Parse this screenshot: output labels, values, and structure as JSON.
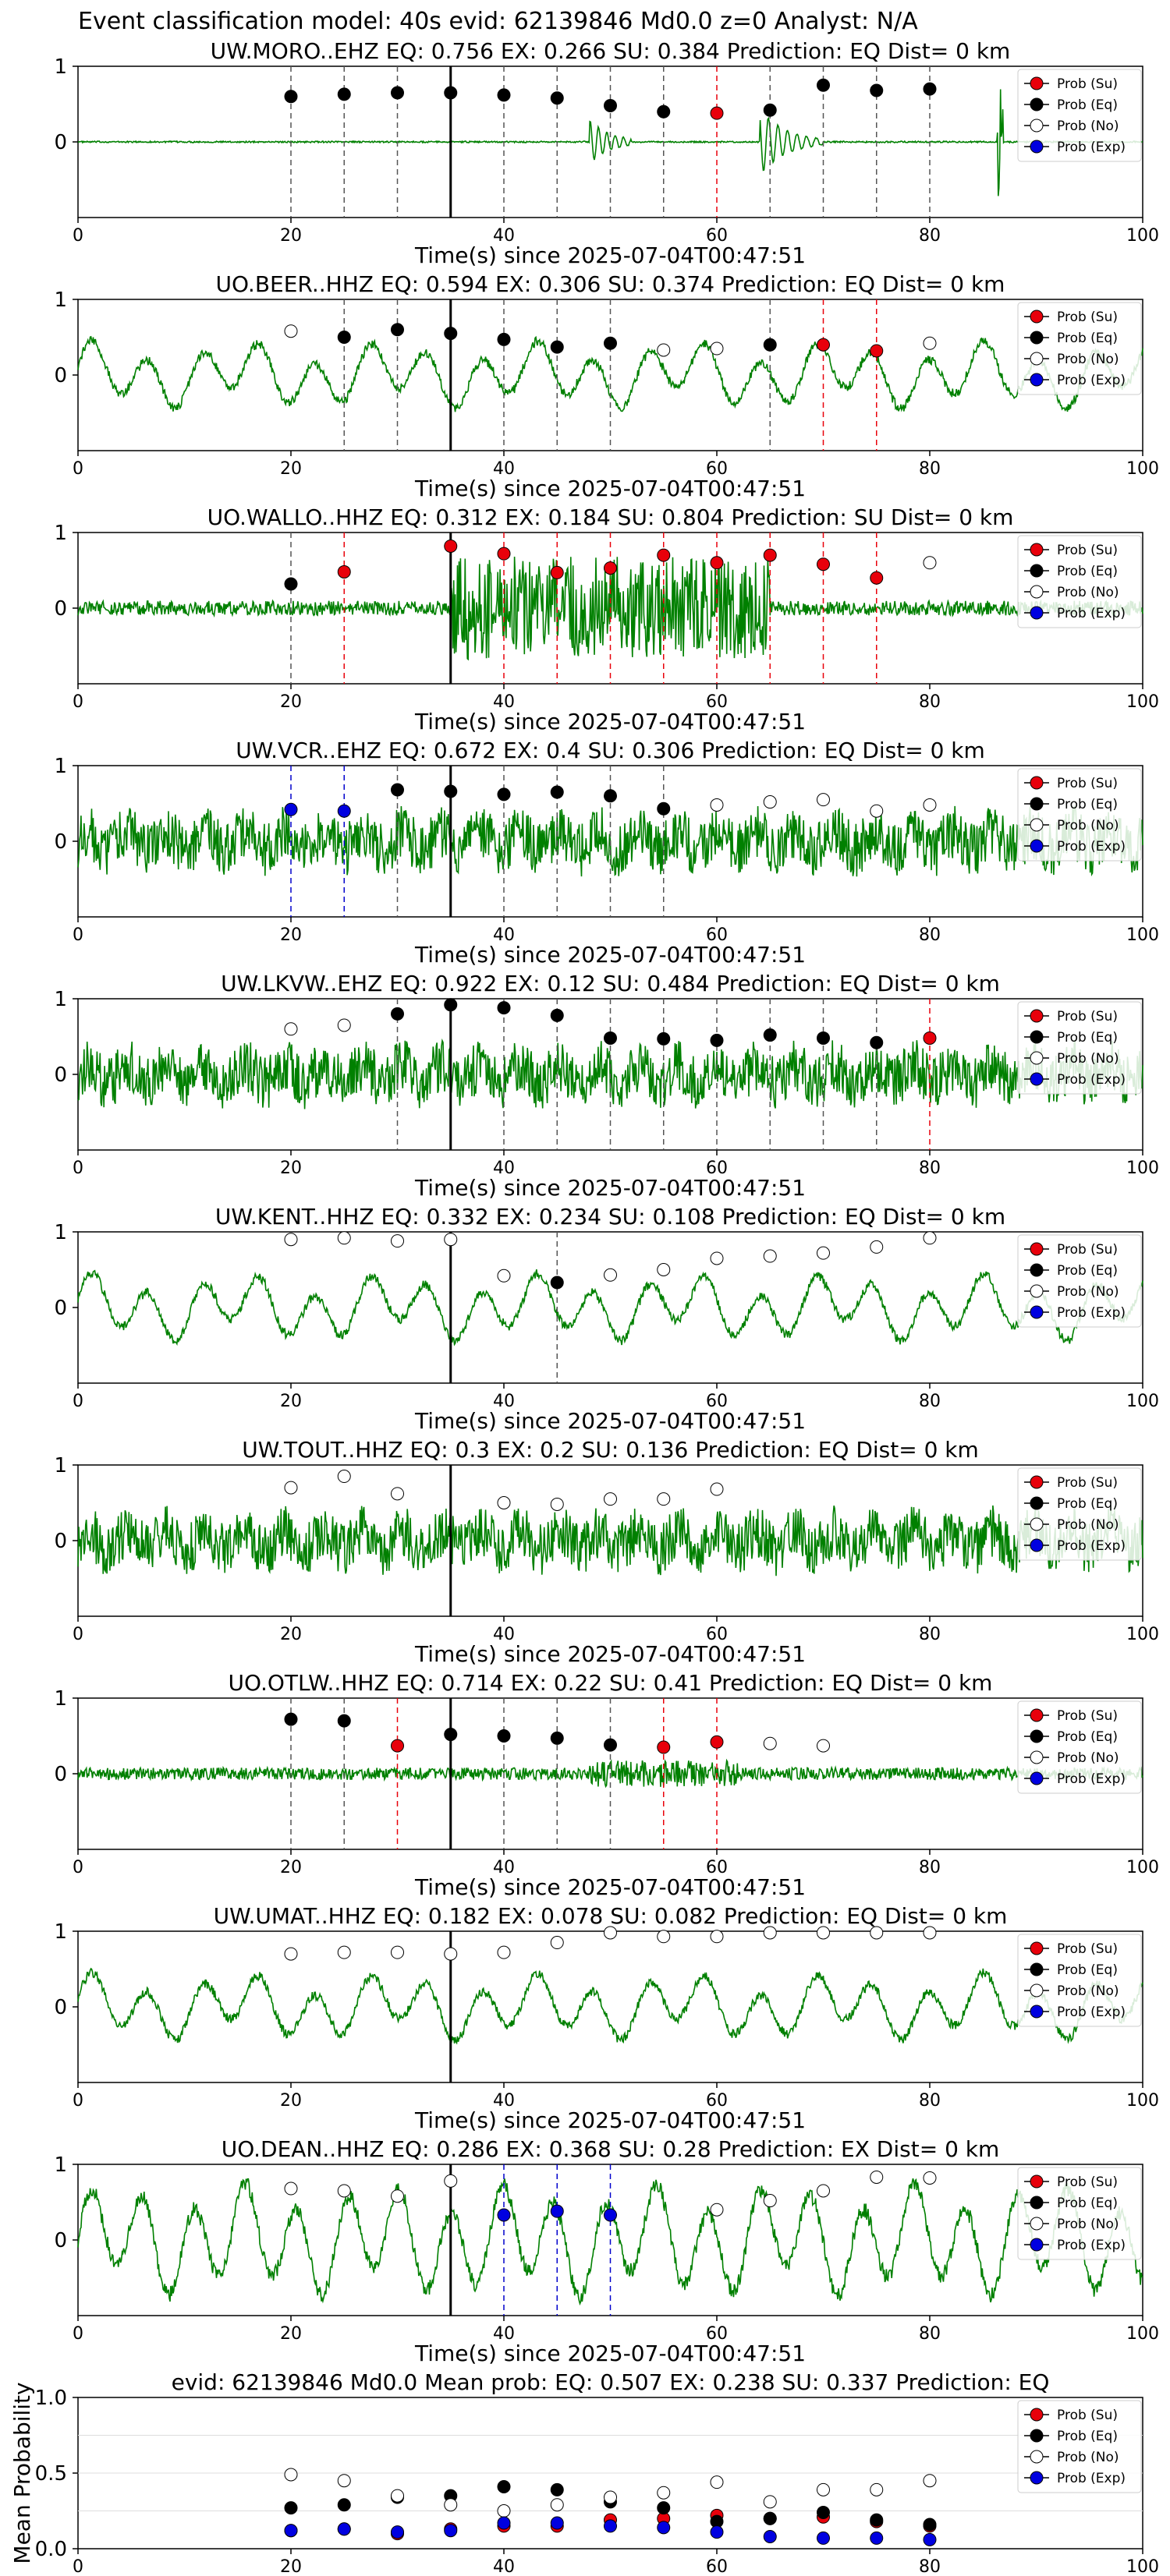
{
  "figure_title": "Event classification model: 40s evid: 62139846 Md0.0 z=0 Analyst: N/A",
  "xlabel": "Time(s) since 2025-07-04T00:47:51",
  "x_ticks": [
    "0",
    "20",
    "40",
    "60",
    "80",
    "100"
  ],
  "y_ticks": [
    "0",
    "1"
  ],
  "legend": [
    "Prob (Su)",
    "Prob (Eq)",
    "Prob (No)",
    "Prob (Exp)"
  ],
  "colors": {
    "su": "#e8000b",
    "eq": "#000000",
    "no": "#ffffff",
    "exp": "#0000e0",
    "trace": "#008000",
    "su_line": "#e8000b",
    "eq_line": "#555555",
    "exp_line": "#0000cc"
  },
  "chart_data": [
    {
      "type": "line",
      "station": "UW.MORO..EHZ",
      "title": "UW.MORO..EHZ   EQ: 0.756  EX: 0.266  SU: 0.384   Prediction: EQ    Dist= 0 km",
      "xlim": [
        0,
        100
      ],
      "ylim": [
        -1,
        1
      ],
      "pick_time": 35,
      "trace_style": "quiet",
      "points": [
        {
          "x": 20,
          "y": 0.6,
          "class": "eq"
        },
        {
          "x": 25,
          "y": 0.63,
          "class": "eq"
        },
        {
          "x": 30,
          "y": 0.65,
          "class": "eq"
        },
        {
          "x": 35,
          "y": 0.65,
          "class": "eq"
        },
        {
          "x": 40,
          "y": 0.62,
          "class": "eq"
        },
        {
          "x": 45,
          "y": 0.58,
          "class": "eq"
        },
        {
          "x": 50,
          "y": 0.48,
          "class": "eq"
        },
        {
          "x": 55,
          "y": 0.4,
          "class": "eq"
        },
        {
          "x": 60,
          "y": 0.38,
          "class": "su"
        },
        {
          "x": 65,
          "y": 0.42,
          "class": "eq"
        },
        {
          "x": 70,
          "y": 0.75,
          "class": "eq"
        },
        {
          "x": 75,
          "y": 0.68,
          "class": "eq"
        },
        {
          "x": 80,
          "y": 0.7,
          "class": "eq"
        }
      ]
    },
    {
      "type": "line",
      "station": "UO.BEER..HHZ",
      "title": "UO.BEER..HHZ   EQ: 0.594  EX: 0.306  SU: 0.374   Prediction: EQ    Dist= 0 km",
      "xlim": [
        0,
        100
      ],
      "ylim": [
        -1,
        1
      ],
      "pick_time": 35,
      "trace_style": "wavy",
      "points": [
        {
          "x": 20,
          "y": 0.58,
          "class": "no"
        },
        {
          "x": 25,
          "y": 0.5,
          "class": "eq"
        },
        {
          "x": 30,
          "y": 0.6,
          "class": "eq"
        },
        {
          "x": 35,
          "y": 0.55,
          "class": "eq"
        },
        {
          "x": 40,
          "y": 0.47,
          "class": "eq"
        },
        {
          "x": 45,
          "y": 0.37,
          "class": "eq"
        },
        {
          "x": 50,
          "y": 0.42,
          "class": "eq"
        },
        {
          "x": 55,
          "y": 0.33,
          "class": "no"
        },
        {
          "x": 60,
          "y": 0.35,
          "class": "no"
        },
        {
          "x": 65,
          "y": 0.4,
          "class": "eq"
        },
        {
          "x": 70,
          "y": 0.4,
          "class": "su"
        },
        {
          "x": 75,
          "y": 0.32,
          "class": "su"
        },
        {
          "x": 80,
          "y": 0.42,
          "class": "no"
        }
      ]
    },
    {
      "type": "line",
      "station": "UO.WALLO..HHZ",
      "title": "UO.WALLO..HHZ   EQ: 0.312  EX: 0.184  SU: 0.804   Prediction: SU    Dist= 0 km",
      "xlim": [
        0,
        100
      ],
      "ylim": [
        -1,
        1
      ],
      "pick_time": 35,
      "trace_style": "burst",
      "points": [
        {
          "x": 20,
          "y": 0.32,
          "class": "eq"
        },
        {
          "x": 25,
          "y": 0.48,
          "class": "su"
        },
        {
          "x": 35,
          "y": 0.82,
          "class": "su"
        },
        {
          "x": 40,
          "y": 0.72,
          "class": "su"
        },
        {
          "x": 45,
          "y": 0.47,
          "class": "su"
        },
        {
          "x": 50,
          "y": 0.53,
          "class": "su"
        },
        {
          "x": 55,
          "y": 0.7,
          "class": "su"
        },
        {
          "x": 60,
          "y": 0.6,
          "class": "su"
        },
        {
          "x": 65,
          "y": 0.7,
          "class": "su"
        },
        {
          "x": 70,
          "y": 0.58,
          "class": "su"
        },
        {
          "x": 75,
          "y": 0.4,
          "class": "su"
        },
        {
          "x": 80,
          "y": 0.6,
          "class": "no"
        }
      ]
    },
    {
      "type": "line",
      "station": "UW.VCR..EHZ",
      "title": "UW.VCR..EHZ   EQ: 0.672  EX: 0.4  SU: 0.306   Prediction: EQ    Dist= 0 km",
      "xlim": [
        0,
        100
      ],
      "ylim": [
        -1,
        1
      ],
      "pick_time": 35,
      "trace_style": "noisy",
      "points": [
        {
          "x": 20,
          "y": 0.42,
          "class": "exp"
        },
        {
          "x": 25,
          "y": 0.4,
          "class": "exp"
        },
        {
          "x": 30,
          "y": 0.68,
          "class": "eq"
        },
        {
          "x": 35,
          "y": 0.66,
          "class": "eq"
        },
        {
          "x": 40,
          "y": 0.62,
          "class": "eq"
        },
        {
          "x": 45,
          "y": 0.65,
          "class": "eq"
        },
        {
          "x": 50,
          "y": 0.6,
          "class": "eq"
        },
        {
          "x": 55,
          "y": 0.43,
          "class": "eq"
        },
        {
          "x": 60,
          "y": 0.48,
          "class": "no"
        },
        {
          "x": 65,
          "y": 0.52,
          "class": "no"
        },
        {
          "x": 70,
          "y": 0.55,
          "class": "no"
        },
        {
          "x": 75,
          "y": 0.4,
          "class": "no"
        },
        {
          "x": 80,
          "y": 0.48,
          "class": "no"
        }
      ]
    },
    {
      "type": "line",
      "station": "UW.LKVW..EHZ",
      "title": "UW.LKVW..EHZ   EQ: 0.922  EX: 0.12  SU: 0.484   Prediction: EQ    Dist= 0 km",
      "xlim": [
        0,
        100
      ],
      "ylim": [
        -1,
        1
      ],
      "pick_time": 35,
      "trace_style": "noisy",
      "points": [
        {
          "x": 20,
          "y": 0.6,
          "class": "no"
        },
        {
          "x": 25,
          "y": 0.65,
          "class": "no"
        },
        {
          "x": 30,
          "y": 0.8,
          "class": "eq"
        },
        {
          "x": 35,
          "y": 0.92,
          "class": "eq"
        },
        {
          "x": 40,
          "y": 0.88,
          "class": "eq"
        },
        {
          "x": 45,
          "y": 0.78,
          "class": "eq"
        },
        {
          "x": 50,
          "y": 0.48,
          "class": "eq"
        },
        {
          "x": 55,
          "y": 0.47,
          "class": "eq"
        },
        {
          "x": 60,
          "y": 0.45,
          "class": "eq"
        },
        {
          "x": 65,
          "y": 0.52,
          "class": "eq"
        },
        {
          "x": 70,
          "y": 0.48,
          "class": "eq"
        },
        {
          "x": 75,
          "y": 0.42,
          "class": "eq"
        },
        {
          "x": 80,
          "y": 0.48,
          "class": "su"
        }
      ]
    },
    {
      "type": "line",
      "station": "UW.KENT..HHZ",
      "title": "UW.KENT..HHZ   EQ: 0.332  EX: 0.234  SU: 0.108   Prediction: EQ    Dist= 0 km",
      "xlim": [
        0,
        100
      ],
      "ylim": [
        -1,
        1
      ],
      "pick_time": 35,
      "trace_style": "wavy",
      "points": [
        {
          "x": 20,
          "y": 0.9,
          "class": "no"
        },
        {
          "x": 25,
          "y": 0.92,
          "class": "no"
        },
        {
          "x": 30,
          "y": 0.88,
          "class": "no"
        },
        {
          "x": 35,
          "y": 0.9,
          "class": "no"
        },
        {
          "x": 40,
          "y": 0.42,
          "class": "no"
        },
        {
          "x": 45,
          "y": 0.33,
          "class": "eq"
        },
        {
          "x": 50,
          "y": 0.43,
          "class": "no"
        },
        {
          "x": 55,
          "y": 0.5,
          "class": "no"
        },
        {
          "x": 60,
          "y": 0.65,
          "class": "no"
        },
        {
          "x": 65,
          "y": 0.68,
          "class": "no"
        },
        {
          "x": 70,
          "y": 0.72,
          "class": "no"
        },
        {
          "x": 75,
          "y": 0.8,
          "class": "no"
        },
        {
          "x": 80,
          "y": 0.92,
          "class": "no"
        }
      ]
    },
    {
      "type": "line",
      "station": "UW.TOUT..HHZ",
      "title": "UW.TOUT..HHZ   EQ: 0.3  EX: 0.2  SU: 0.136   Prediction: EQ    Dist= 0 km",
      "xlim": [
        0,
        100
      ],
      "ylim": [
        -1,
        1
      ],
      "pick_time": 35,
      "trace_style": "noisy",
      "points": [
        {
          "x": 20,
          "y": 0.7,
          "class": "no"
        },
        {
          "x": 25,
          "y": 0.85,
          "class": "no"
        },
        {
          "x": 30,
          "y": 0.62,
          "class": "no"
        },
        {
          "x": 40,
          "y": 0.5,
          "class": "no"
        },
        {
          "x": 45,
          "y": 0.48,
          "class": "no"
        },
        {
          "x": 50,
          "y": 0.55,
          "class": "no"
        },
        {
          "x": 55,
          "y": 0.55,
          "class": "no"
        },
        {
          "x": 60,
          "y": 0.68,
          "class": "no"
        }
      ]
    },
    {
      "type": "line",
      "station": "UO.OTLW..HHZ",
      "title": "UO.OTLW..HHZ   EQ: 0.714  EX: 0.22  SU: 0.41   Prediction: EQ    Dist= 0 km",
      "xlim": [
        0,
        100
      ],
      "ylim": [
        -1,
        1
      ],
      "pick_time": 35,
      "trace_style": "quietnoisy",
      "points": [
        {
          "x": 20,
          "y": 0.72,
          "class": "eq"
        },
        {
          "x": 25,
          "y": 0.7,
          "class": "eq"
        },
        {
          "x": 30,
          "y": 0.37,
          "class": "su"
        },
        {
          "x": 35,
          "y": 0.52,
          "class": "eq"
        },
        {
          "x": 40,
          "y": 0.5,
          "class": "eq"
        },
        {
          "x": 45,
          "y": 0.47,
          "class": "eq"
        },
        {
          "x": 50,
          "y": 0.38,
          "class": "eq"
        },
        {
          "x": 55,
          "y": 0.35,
          "class": "su"
        },
        {
          "x": 60,
          "y": 0.42,
          "class": "su"
        },
        {
          "x": 65,
          "y": 0.4,
          "class": "no"
        },
        {
          "x": 70,
          "y": 0.37,
          "class": "no"
        }
      ]
    },
    {
      "type": "line",
      "station": "UW.UMAT..HHZ",
      "title": "UW.UMAT..HHZ   EQ: 0.182  EX: 0.078  SU: 0.082   Prediction: EQ    Dist= 0 km",
      "xlim": [
        0,
        100
      ],
      "ylim": [
        -1,
        1
      ],
      "pick_time": 35,
      "trace_style": "wavy",
      "points": [
        {
          "x": 20,
          "y": 0.7,
          "class": "no"
        },
        {
          "x": 25,
          "y": 0.72,
          "class": "no"
        },
        {
          "x": 30,
          "y": 0.72,
          "class": "no"
        },
        {
          "x": 35,
          "y": 0.7,
          "class": "no"
        },
        {
          "x": 40,
          "y": 0.72,
          "class": "no"
        },
        {
          "x": 45,
          "y": 0.85,
          "class": "no"
        },
        {
          "x": 50,
          "y": 0.98,
          "class": "no"
        },
        {
          "x": 55,
          "y": 0.93,
          "class": "no"
        },
        {
          "x": 60,
          "y": 0.93,
          "class": "no"
        },
        {
          "x": 65,
          "y": 0.98,
          "class": "no"
        },
        {
          "x": 70,
          "y": 0.98,
          "class": "no"
        },
        {
          "x": 75,
          "y": 0.98,
          "class": "no"
        },
        {
          "x": 80,
          "y": 0.98,
          "class": "no"
        }
      ]
    },
    {
      "type": "line",
      "station": "UO.DEAN..HHZ",
      "title": "UO.DEAN..HHZ   EQ: 0.286  EX: 0.368  SU: 0.28   Prediction: EX    Dist= 0 km",
      "xlim": [
        0,
        100
      ],
      "ylim": [
        -1,
        1
      ],
      "pick_time": 35,
      "trace_style": "bigwavy",
      "points": [
        {
          "x": 20,
          "y": 0.68,
          "class": "no"
        },
        {
          "x": 25,
          "y": 0.65,
          "class": "no"
        },
        {
          "x": 30,
          "y": 0.58,
          "class": "no"
        },
        {
          "x": 35,
          "y": 0.78,
          "class": "no"
        },
        {
          "x": 40,
          "y": 0.33,
          "class": "exp"
        },
        {
          "x": 45,
          "y": 0.38,
          "class": "exp"
        },
        {
          "x": 50,
          "y": 0.33,
          "class": "exp"
        },
        {
          "x": 60,
          "y": 0.4,
          "class": "no"
        },
        {
          "x": 65,
          "y": 0.52,
          "class": "no"
        },
        {
          "x": 70,
          "y": 0.65,
          "class": "no"
        },
        {
          "x": 75,
          "y": 0.83,
          "class": "no"
        },
        {
          "x": 80,
          "y": 0.82,
          "class": "no"
        }
      ]
    },
    {
      "type": "scatter",
      "title": "evid: 62139846  Md0.0   Mean prob:   EQ: 0.507  EX: 0.238  SU: 0.337   Prediction: EQ",
      "ylabel": "Mean Probability",
      "xlim": [
        0,
        100
      ],
      "ylim": [
        0,
        1
      ],
      "y_ticks": [
        "0.0",
        "0.5",
        "1.0"
      ],
      "series": [
        {
          "name": "Prob (Su)",
          "class": "su",
          "x": [
            20,
            25,
            30,
            35,
            40,
            45,
            50,
            55,
            60,
            65,
            70,
            75,
            80
          ],
          "values": [
            0.12,
            0.13,
            0.1,
            0.13,
            0.15,
            0.15,
            0.19,
            0.2,
            0.22,
            0.2,
            0.21,
            0.18,
            0.15
          ]
        },
        {
          "name": "Prob (Eq)",
          "class": "eq",
          "x": [
            20,
            25,
            30,
            35,
            40,
            45,
            50,
            55,
            60,
            65,
            70,
            75,
            80
          ],
          "values": [
            0.27,
            0.29,
            0.34,
            0.35,
            0.41,
            0.39,
            0.31,
            0.27,
            0.18,
            0.2,
            0.24,
            0.19,
            0.16
          ]
        },
        {
          "name": "Prob (No)",
          "class": "no",
          "x": [
            20,
            25,
            30,
            35,
            40,
            45,
            50,
            55,
            60,
            65,
            70,
            75,
            80
          ],
          "values": [
            0.49,
            0.45,
            0.35,
            0.29,
            0.25,
            0.29,
            0.34,
            0.37,
            0.44,
            0.31,
            0.39,
            0.39,
            0.45
          ]
        },
        {
          "name": "Prob (Exp)",
          "class": "exp",
          "x": [
            20,
            25,
            30,
            35,
            40,
            45,
            50,
            55,
            60,
            65,
            70,
            75,
            80
          ],
          "values": [
            0.12,
            0.13,
            0.11,
            0.12,
            0.17,
            0.17,
            0.15,
            0.14,
            0.11,
            0.08,
            0.07,
            0.07,
            0.06
          ]
        }
      ]
    }
  ]
}
